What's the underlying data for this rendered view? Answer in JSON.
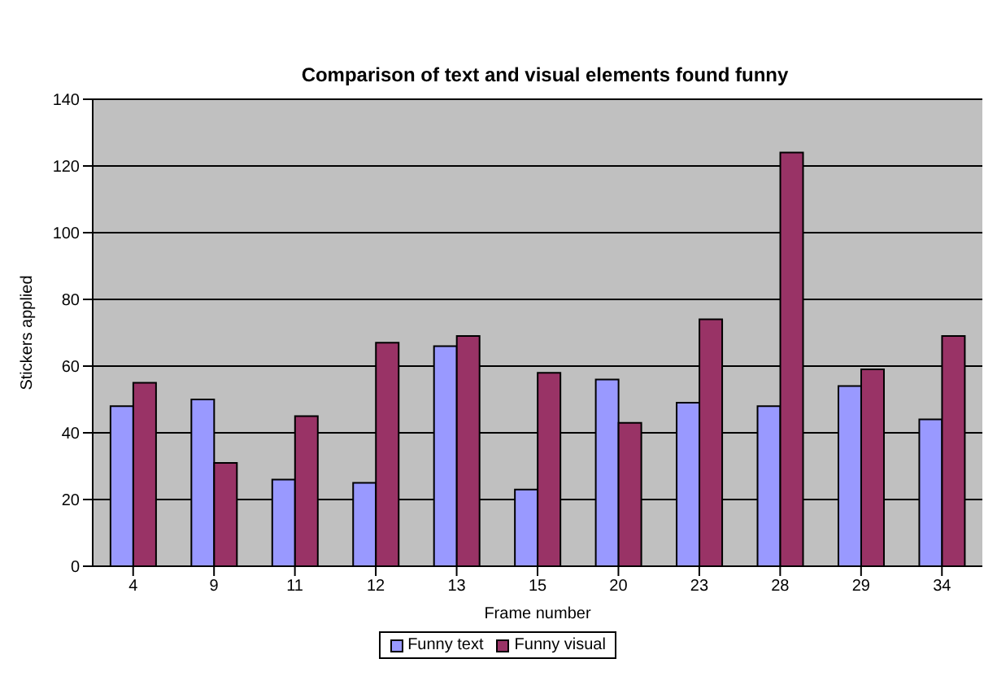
{
  "chart_data": {
    "type": "bar",
    "title": "Comparison of text and visual elements found funny",
    "xlabel": "Frame number",
    "ylabel": "Stickers applied",
    "categories": [
      "4",
      "9",
      "11",
      "12",
      "13",
      "15",
      "20",
      "23",
      "28",
      "29",
      "34"
    ],
    "series": [
      {
        "name": "Funny text",
        "color": "#9999ff",
        "values": [
          48,
          50,
          26,
          25,
          66,
          23,
          56,
          49,
          48,
          54,
          44
        ]
      },
      {
        "name": "Funny visual",
        "color": "#993366",
        "values": [
          55,
          31,
          45,
          67,
          69,
          58,
          43,
          74,
          124,
          59,
          69
        ]
      }
    ],
    "ylim": [
      0,
      140
    ],
    "yticks": [
      0,
      20,
      40,
      60,
      80,
      100,
      120,
      140
    ],
    "grid": "y",
    "legend": "bottom"
  }
}
